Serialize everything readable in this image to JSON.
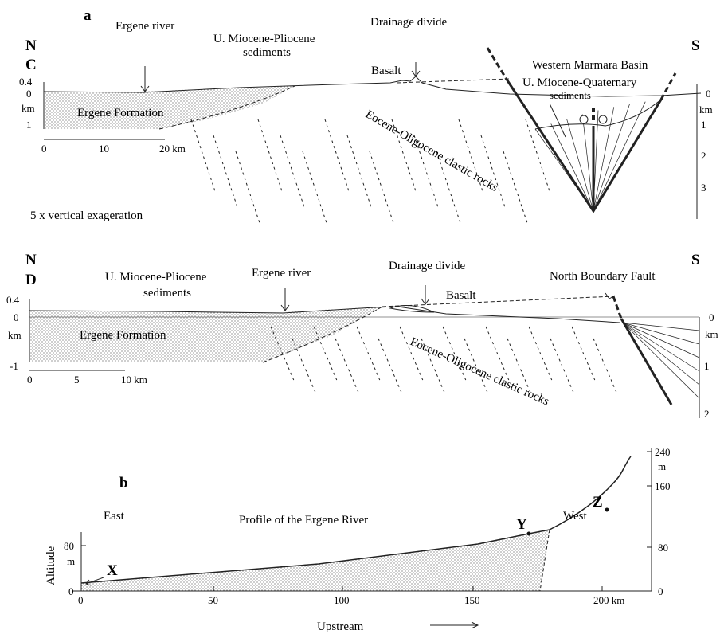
{
  "panel_a": {
    "label": "a",
    "section_c": {
      "north": "N",
      "name": "C",
      "south": "S",
      "ergene_river": "Ergene river",
      "miocene_pliocene": [
        "U. Miocene-Pliocene",
        "sediments"
      ],
      "drainage_divide": "Drainage divide",
      "basalt": "Basalt",
      "basin": "Western Marmara  Basin",
      "miocene_quaternary": [
        "U. Miocene-Quaternary",
        "sediments"
      ],
      "ergene_formation": "Ergene Formation",
      "eocene": "Eocene-Oligocene clastic rocks",
      "left_axis": [
        "0.4",
        "0",
        "km",
        "1"
      ],
      "scale_bar": [
        "0",
        "10",
        "20 km"
      ],
      "right_axis": [
        "0",
        "km",
        "1",
        "2",
        "3"
      ]
    },
    "exaggeration": "5 x vertical exageration",
    "section_d": {
      "north": "N",
      "name": "D",
      "south": "S",
      "miocene_pliocene": [
        "U. Miocene-Pliocene",
        "sediments"
      ],
      "ergene_river": "Ergene river",
      "drainage_divide": "Drainage divide",
      "basalt": "Basalt",
      "fault": "North Boundary Fault",
      "ergene_formation": "Ergene Formation",
      "eocene": "Eocene-Oligocene clastic rocks",
      "left_axis": [
        "0.4",
        "0",
        "km",
        "-1"
      ],
      "scale_bar": [
        "0",
        "5",
        "10 km"
      ],
      "right_axis": [
        "0",
        "km",
        "1",
        "2"
      ]
    }
  },
  "panel_b": {
    "label": "b",
    "east": "East",
    "title": "Profile of the Ergene River",
    "west": "West",
    "points": [
      "X",
      "Y",
      "Z"
    ],
    "y_label": "Altitude",
    "left_axis": [
      "80",
      "m",
      "0"
    ],
    "x_axis": [
      "0",
      "50",
      "100",
      "150",
      "200  km"
    ],
    "right_axis": [
      "240",
      "m",
      "160",
      "80",
      "0"
    ],
    "direction": "Upstream"
  }
}
